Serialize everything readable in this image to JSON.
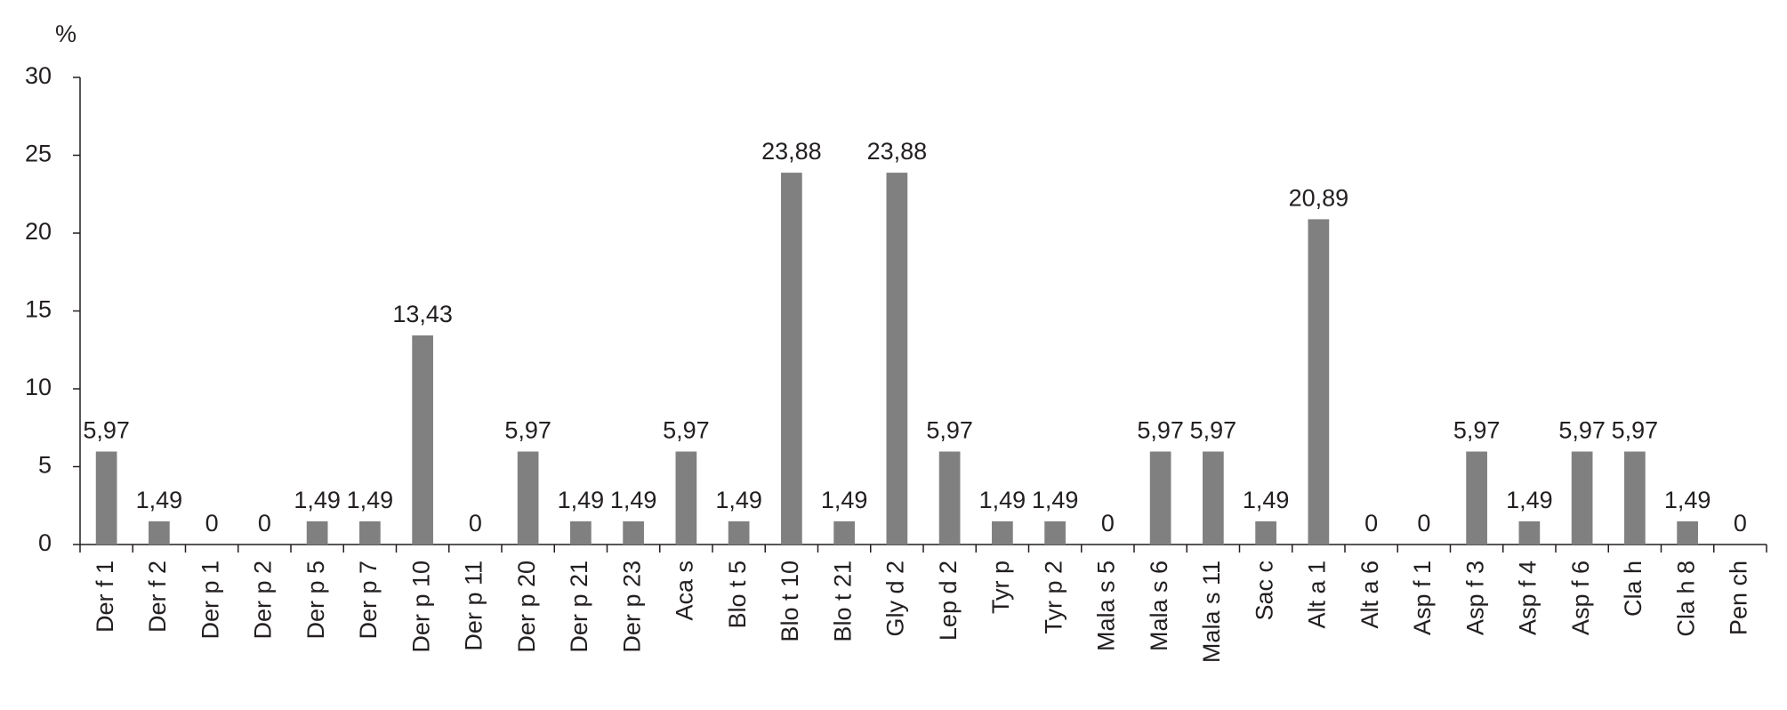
{
  "chart_data": {
    "type": "bar",
    "y_label": "%",
    "categories": [
      "Der f 1",
      "Der f 2",
      "Der p 1",
      "Der p 2",
      "Der p 5",
      "Der p 7",
      "Der p 10",
      "Der p 11",
      "Der p 20",
      "Der p 21",
      "Der p 23",
      "Aca s",
      "Blo t 5",
      "Blo t 10",
      "Blo t 21",
      "Gly d 2",
      "Lep d 2",
      "Tyr p",
      "Tyr p 2",
      "Mala s 5",
      "Mala s 6",
      "Mala s 11",
      "Sac c",
      "Alt a 1",
      "Alt a 6",
      "Asp f 1",
      "Asp f 3",
      "Asp f 4",
      "Asp f 6",
      "Cla h",
      "Cla h 8",
      "Pen ch"
    ],
    "values": [
      5.97,
      1.49,
      0,
      0,
      1.49,
      1.49,
      13.43,
      0,
      5.97,
      1.49,
      1.49,
      5.97,
      1.49,
      23.88,
      1.49,
      23.88,
      5.97,
      1.49,
      1.49,
      0,
      5.97,
      5.97,
      1.49,
      20.89,
      0,
      0,
      5.97,
      1.49,
      5.97,
      5.97,
      1.49,
      0
    ],
    "value_labels": [
      "5,97",
      "1,49",
      "0",
      "0",
      "1,49",
      "1,49",
      "13,43",
      "0",
      "5,97",
      "1,49",
      "1,49",
      "5,97",
      "1,49",
      "23,88",
      "1,49",
      "23,88",
      "5,97",
      "1,49",
      "1,49",
      "0",
      "5,97",
      "5,97",
      "1,49",
      "20,89",
      "0",
      "0",
      "5,97",
      "1,49",
      "5,97",
      "5,97",
      "1,49",
      "0"
    ],
    "color": "#808080",
    "ylim": [
      0,
      30
    ],
    "yticks": [
      0,
      5,
      10,
      15,
      20,
      25,
      30
    ],
    "grid": false
  }
}
